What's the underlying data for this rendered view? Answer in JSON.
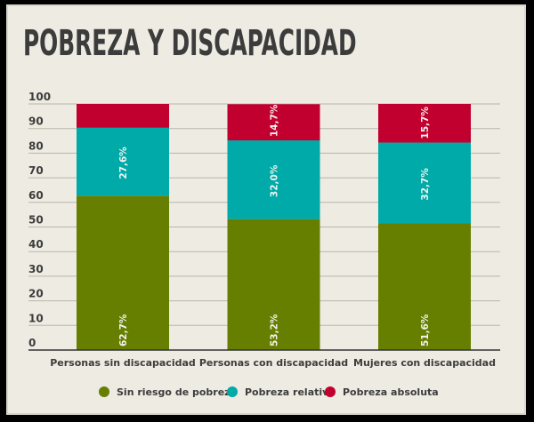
{
  "chart_data": {
    "type": "bar",
    "stacked": true,
    "title": "POBREZA Y DISCAPACIDAD",
    "categories": [
      "Personas sin discapacidad",
      "Personas con discapacidad",
      "Mujeres con discapacidad"
    ],
    "series": [
      {
        "name": "Sin riesgo de pobreza",
        "color": "#677f00",
        "values": [
          62.7,
          53.2,
          51.6
        ],
        "labels": [
          "62,7%",
          "53,2%",
          "51,6%"
        ]
      },
      {
        "name": "Pobreza relativa",
        "color": "#00aaa8",
        "values": [
          27.6,
          32.0,
          32.7
        ],
        "labels": [
          "27,6%",
          "32,0%",
          "32,7%"
        ]
      },
      {
        "name": "Pobreza absoluta",
        "color": "#c2002f",
        "values": [
          9.7,
          14.7,
          15.7
        ],
        "labels": [
          "",
          "14,7%",
          "15,7%"
        ]
      }
    ],
    "yticks": [
      0,
      10,
      20,
      30,
      40,
      50,
      60,
      70,
      80,
      90,
      100
    ],
    "ylim": [
      0,
      100
    ],
    "grid": true,
    "legend": "bottom"
  }
}
